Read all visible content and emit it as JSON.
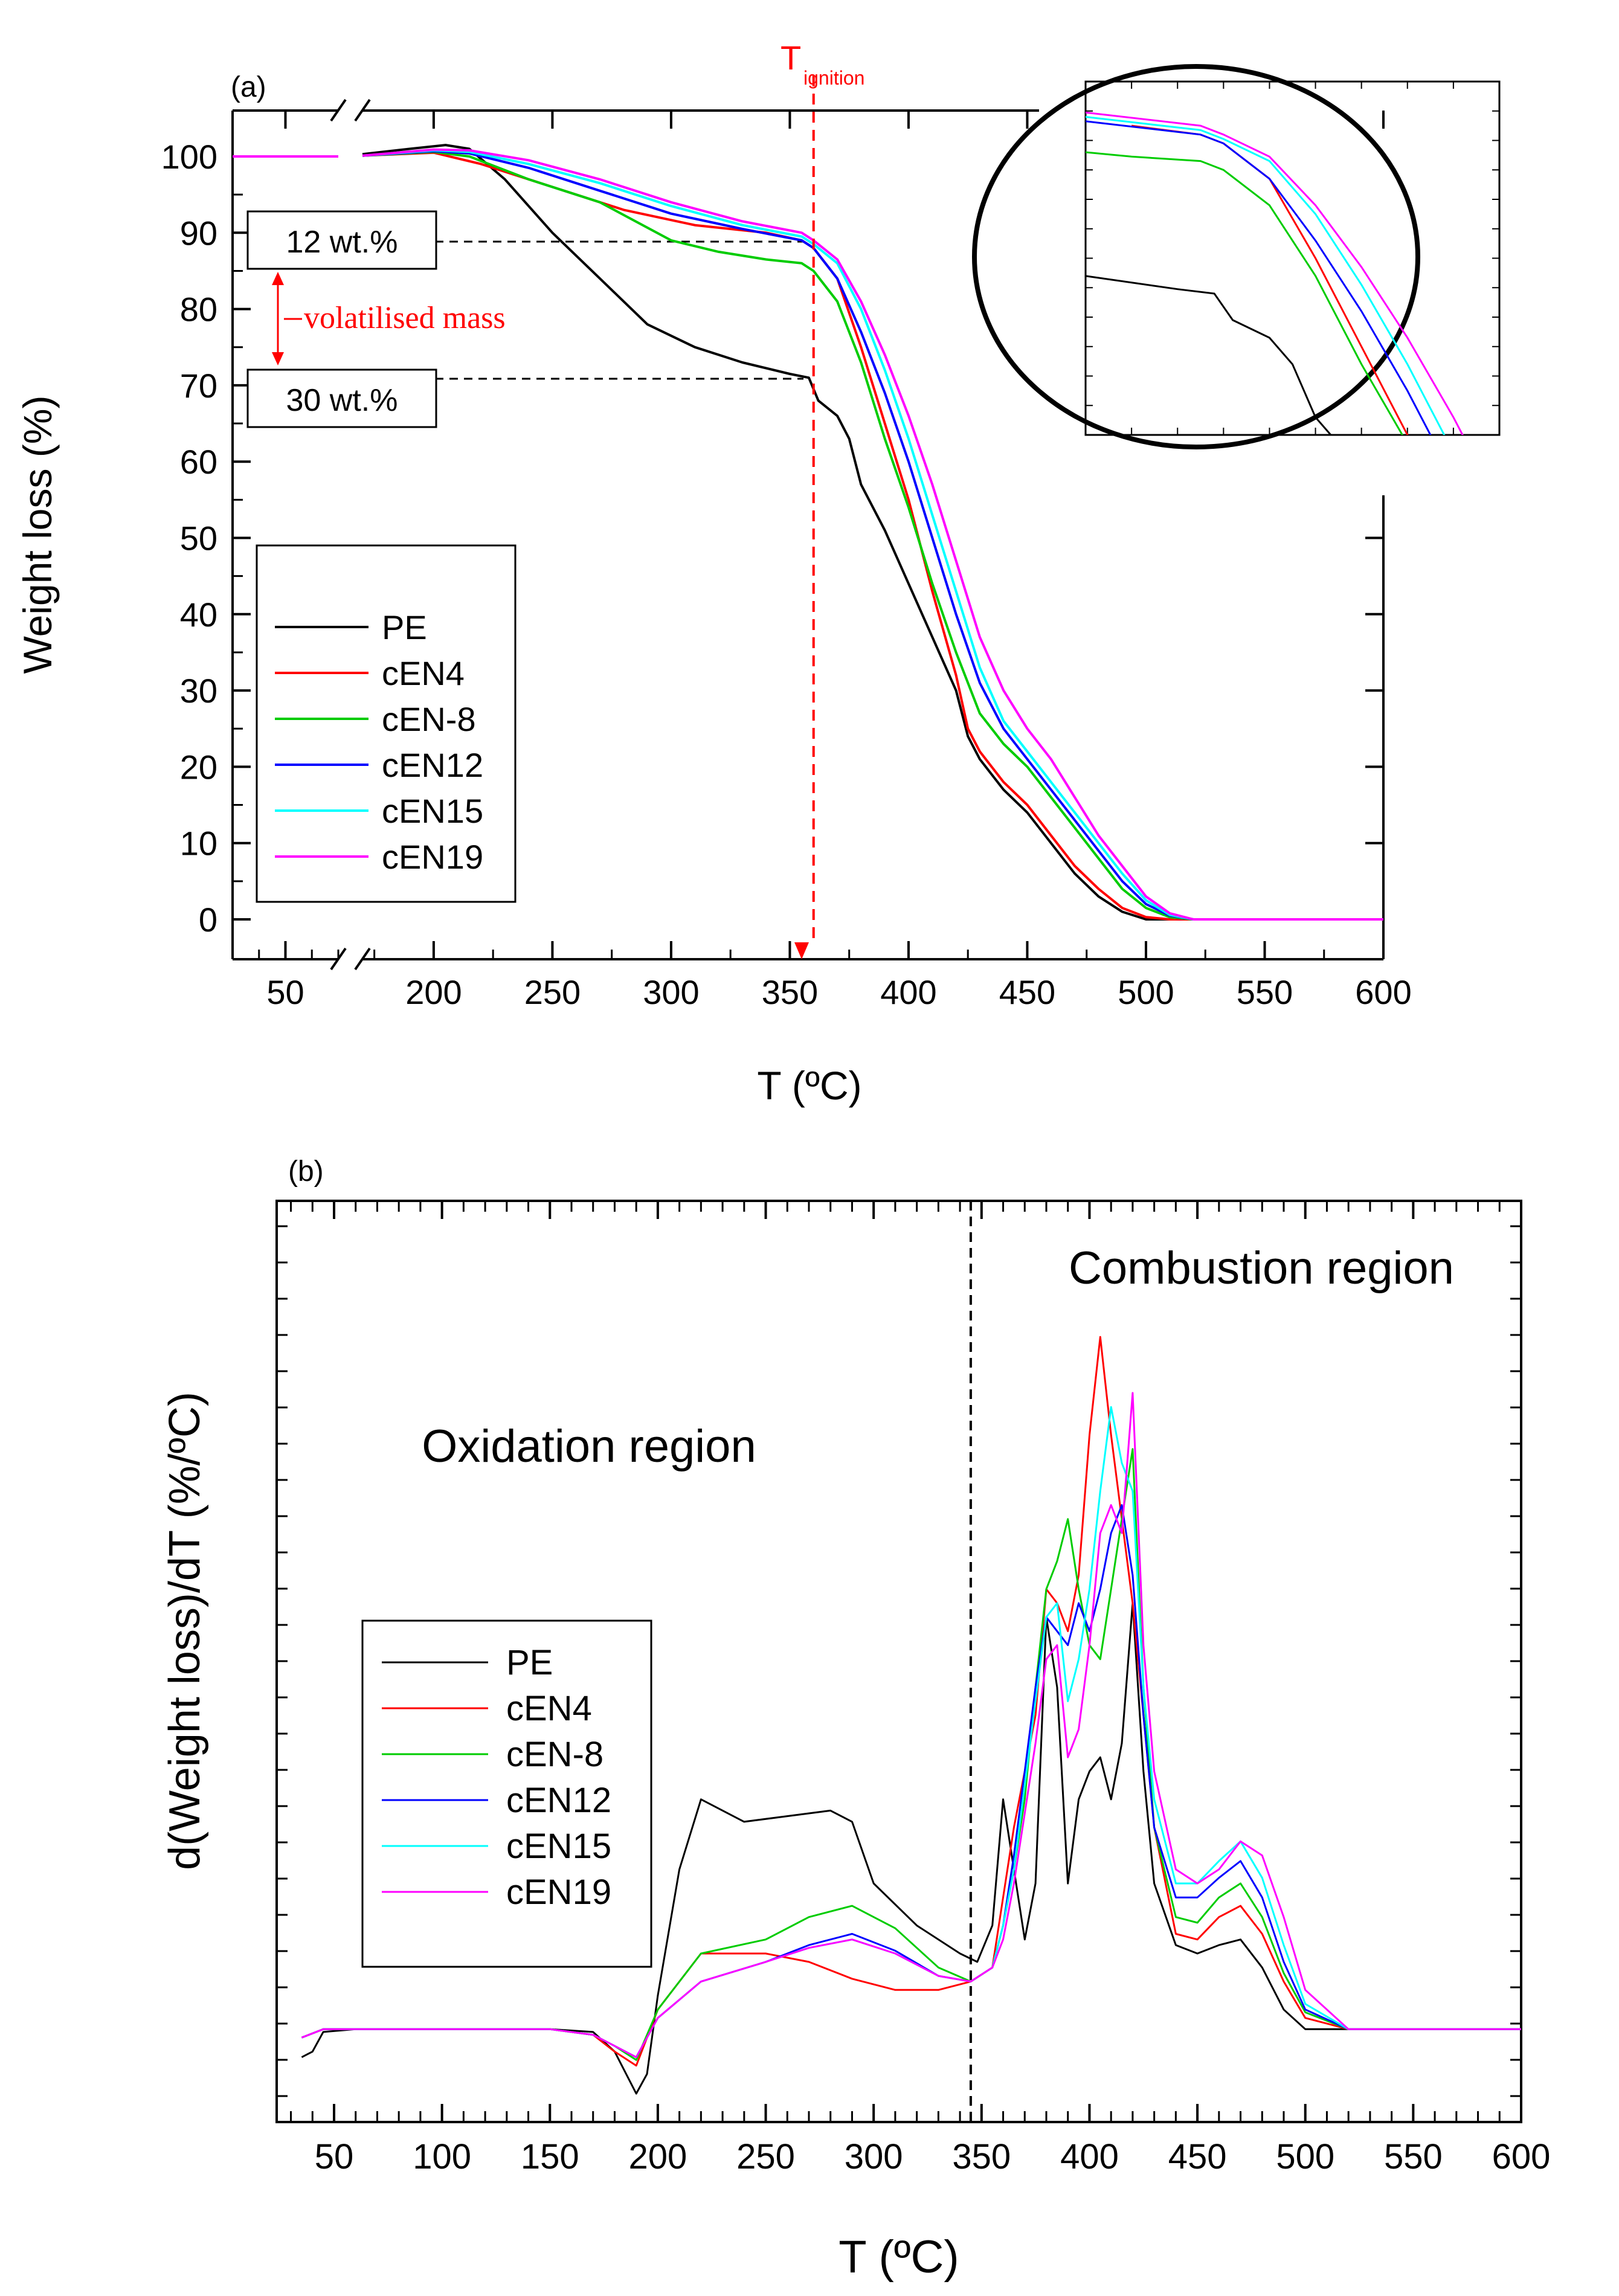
{
  "colors": {
    "PE": "#000000",
    "cEN4": "#ff0000",
    "cEN-8": "#00cc00",
    "cEN12": "#0000ff",
    "cEN15": "#00ffff",
    "cEN19": "#ff00ff",
    "annotation_red": "#ff0000"
  },
  "chart_data": [
    {
      "type": "line",
      "panel_label": "(a)",
      "xlabel": "T (ºC)",
      "ylabel": "Weight loss (%)",
      "xlim": [
        30,
        600
      ],
      "ylim": [
        -5,
        105
      ],
      "x_ticks": [
        "50",
        "200",
        "250",
        "300",
        "350",
        "400",
        "450",
        "500",
        "550",
        "600"
      ],
      "y_ticks": [
        "0",
        "10",
        "20",
        "30",
        "40",
        "50",
        "60",
        "70",
        "80",
        "90",
        "100"
      ],
      "axis_break": "between 70 and 170 ºC",
      "legend": [
        "PE",
        "cEN4",
        "cEN-8",
        "cEN12",
        "cEN15",
        "cEN19"
      ],
      "annotations": {
        "t_ignition_main": "T",
        "t_ignition_sub": "ignition",
        "t_ignition_x": 360,
        "box_12": "12 wt.%",
        "box_30": "30 wt.%",
        "volatilised": "volatilised mass",
        "inset": "magnified view near ignition"
      },
      "series": [
        {
          "name": "PE",
          "x": [
            30,
            70,
            170,
            190,
            205,
            215,
            230,
            250,
            270,
            290,
            310,
            330,
            350,
            358,
            362,
            370,
            375,
            380,
            390,
            400,
            410,
            420,
            425,
            430,
            440,
            450,
            460,
            470,
            480,
            490,
            500,
            520,
            600
          ],
          "y": [
            100,
            100,
            100.3,
            101,
            101.5,
            101,
            97,
            90,
            84,
            78,
            75,
            73,
            71.5,
            71,
            68,
            66,
            63,
            57,
            51,
            44,
            37,
            30,
            24,
            21,
            17,
            14,
            10,
            6,
            3,
            1,
            0,
            0,
            0
          ]
        },
        {
          "name": "cEN4",
          "x": [
            30,
            70,
            170,
            200,
            220,
            250,
            280,
            310,
            340,
            355,
            360,
            370,
            380,
            390,
            400,
            410,
            420,
            425,
            430,
            440,
            450,
            460,
            470,
            480,
            490,
            500,
            510,
            600
          ],
          "y": [
            100,
            100,
            100.1,
            100.5,
            99,
            96,
            93,
            91,
            90,
            89,
            88,
            84,
            75,
            65,
            55,
            43,
            32,
            25,
            22,
            18,
            15,
            11,
            7,
            4,
            1.5,
            0.3,
            0,
            0
          ]
        },
        {
          "name": "cEN-8",
          "x": [
            30,
            70,
            170,
            200,
            215,
            240,
            270,
            300,
            320,
            340,
            355,
            360,
            370,
            380,
            390,
            400,
            410,
            420,
            430,
            440,
            450,
            460,
            470,
            480,
            490,
            500,
            510,
            520,
            600
          ],
          "y": [
            100,
            100,
            100.1,
            100.6,
            100,
            97,
            94,
            89,
            87.5,
            86.5,
            86,
            85,
            81,
            73,
            63,
            54,
            44,
            35,
            27,
            23,
            20,
            16,
            12,
            8,
            4,
            1.5,
            0.3,
            0,
            0
          ]
        },
        {
          "name": "cEN12",
          "x": [
            30,
            70,
            170,
            200,
            215,
            240,
            270,
            300,
            330,
            355,
            360,
            370,
            380,
            390,
            400,
            410,
            420,
            430,
            440,
            450,
            460,
            470,
            480,
            490,
            500,
            510,
            520,
            600
          ],
          "y": [
            100,
            100,
            100.1,
            100.7,
            100.4,
            98.5,
            95.5,
            92.5,
            90.5,
            89,
            88,
            84,
            77,
            69,
            60,
            50,
            40,
            31,
            25,
            21,
            17,
            13,
            9,
            5,
            2,
            0.5,
            0,
            0
          ]
        },
        {
          "name": "cEN15",
          "x": [
            30,
            70,
            170,
            200,
            215,
            240,
            270,
            300,
            330,
            355,
            360,
            370,
            380,
            390,
            400,
            410,
            420,
            430,
            440,
            450,
            460,
            470,
            480,
            490,
            500,
            510,
            520,
            600
          ],
          "y": [
            100,
            100,
            100.1,
            100.8,
            100.6,
            99,
            96.5,
            93.5,
            91,
            89.5,
            88.5,
            86,
            80,
            72,
            63,
            53,
            43,
            33,
            26,
            22,
            18,
            14,
            10,
            6,
            2.5,
            0.6,
            0,
            0
          ]
        },
        {
          "name": "cEN19",
          "x": [
            30,
            70,
            170,
            200,
            215,
            240,
            270,
            300,
            330,
            355,
            360,
            370,
            380,
            390,
            400,
            410,
            420,
            430,
            440,
            450,
            460,
            470,
            480,
            490,
            500,
            510,
            520,
            600
          ],
          "y": [
            100,
            100,
            100.1,
            100.9,
            100.8,
            99.5,
            97,
            94,
            91.5,
            90,
            89,
            86.5,
            81,
            74,
            66,
            57,
            47,
            37,
            30,
            25,
            21,
            16,
            11,
            7,
            3,
            0.8,
            0,
            0
          ]
        }
      ]
    },
    {
      "type": "line",
      "panel_label": "(b)",
      "xlabel": "T (ºC)",
      "ylabel": "d(Weight loss)/dT (%/ºC)",
      "xlim": [
        25,
        600
      ],
      "ylim": [
        -0.7,
        2.85
      ],
      "x_ticks": [
        "50",
        "100",
        "150",
        "200",
        "250",
        "300",
        "350",
        "400",
        "450",
        "500",
        "550",
        "600"
      ],
      "y_ticks": [],
      "boundary_x": 345,
      "annotations": {
        "left_region": "Oxidation region",
        "right_region": "Combustion region"
      },
      "legend": [
        "PE",
        "cEN4",
        "cEN-8",
        "cEN12",
        "cEN15",
        "cEN19"
      ],
      "series": [
        {
          "name": "PE",
          "x": [
            35,
            40,
            45,
            60,
            80,
            100,
            120,
            150,
            170,
            180,
            190,
            195,
            200,
            210,
            220,
            225,
            240,
            260,
            280,
            290,
            300,
            320,
            340,
            348,
            355,
            360,
            365,
            370,
            375,
            380,
            385,
            390,
            395,
            400,
            405,
            410,
            415,
            420,
            425,
            430,
            440,
            450,
            460,
            470,
            480,
            490,
            500,
            520,
            600
          ],
          "y": [
            -0.12,
            -0.1,
            -0.03,
            -0.02,
            -0.02,
            -0.02,
            -0.02,
            -0.02,
            -0.03,
            -0.1,
            -0.25,
            -0.18,
            0.1,
            0.55,
            0.8,
            0.78,
            0.72,
            0.74,
            0.76,
            0.72,
            0.5,
            0.35,
            0.25,
            0.22,
            0.35,
            0.8,
            0.55,
            0.3,
            0.5,
            1.45,
            1.2,
            0.5,
            0.8,
            0.9,
            0.95,
            0.8,
            1.0,
            1.5,
            0.9,
            0.5,
            0.28,
            0.25,
            0.28,
            0.3,
            0.2,
            0.05,
            -0.02,
            -0.02,
            -0.02
          ]
        },
        {
          "name": "cEN4",
          "x": [
            35,
            45,
            80,
            150,
            170,
            180,
            190,
            200,
            220,
            250,
            270,
            290,
            310,
            330,
            345,
            355,
            360,
            365,
            370,
            375,
            380,
            385,
            390,
            395,
            400,
            405,
            410,
            415,
            420,
            425,
            430,
            440,
            450,
            460,
            470,
            480,
            490,
            500,
            520,
            600
          ],
          "y": [
            -0.05,
            -0.02,
            -0.02,
            -0.02,
            -0.04,
            -0.1,
            -0.15,
            0.05,
            0.25,
            0.25,
            0.22,
            0.16,
            0.12,
            0.12,
            0.15,
            0.2,
            0.45,
            0.7,
            0.9,
            1.1,
            1.55,
            1.5,
            1.4,
            1.6,
            2.1,
            2.45,
            2.1,
            1.8,
            1.5,
            1.1,
            0.7,
            0.32,
            0.3,
            0.38,
            0.42,
            0.32,
            0.15,
            0.02,
            -0.02,
            -0.02
          ]
        },
        {
          "name": "cEN-8",
          "x": [
            35,
            45,
            80,
            150,
            170,
            180,
            190,
            200,
            220,
            250,
            270,
            290,
            310,
            330,
            345,
            355,
            360,
            365,
            370,
            375,
            380,
            385,
            390,
            395,
            400,
            405,
            410,
            415,
            420,
            425,
            430,
            440,
            450,
            460,
            470,
            480,
            490,
            500,
            520,
            600
          ],
          "y": [
            -0.05,
            -0.02,
            -0.02,
            -0.02,
            -0.04,
            -0.08,
            -0.13,
            0.05,
            0.25,
            0.3,
            0.38,
            0.42,
            0.34,
            0.2,
            0.15,
            0.2,
            0.35,
            0.55,
            0.8,
            1.2,
            1.55,
            1.65,
            1.8,
            1.55,
            1.35,
            1.3,
            1.55,
            1.8,
            2.05,
            1.2,
            0.7,
            0.38,
            0.36,
            0.45,
            0.5,
            0.38,
            0.18,
            0.04,
            -0.02,
            -0.02
          ]
        },
        {
          "name": "cEN12",
          "x": [
            35,
            45,
            80,
            150,
            170,
            180,
            190,
            200,
            220,
            250,
            270,
            290,
            310,
            330,
            345,
            355,
            360,
            365,
            370,
            375,
            380,
            385,
            390,
            395,
            400,
            405,
            410,
            415,
            420,
            425,
            430,
            440,
            450,
            460,
            470,
            480,
            490,
            500,
            520,
            600
          ],
          "y": [
            -0.05,
            -0.02,
            -0.02,
            -0.02,
            -0.04,
            -0.08,
            -0.12,
            0.02,
            0.15,
            0.22,
            0.28,
            0.32,
            0.26,
            0.17,
            0.15,
            0.2,
            0.35,
            0.6,
            0.9,
            1.2,
            1.45,
            1.4,
            1.35,
            1.5,
            1.4,
            1.55,
            1.75,
            1.85,
            1.6,
            1.1,
            0.7,
            0.45,
            0.45,
            0.52,
            0.58,
            0.45,
            0.22,
            0.05,
            -0.02,
            -0.02
          ]
        },
        {
          "name": "cEN15",
          "x": [
            35,
            45,
            80,
            150,
            170,
            180,
            190,
            200,
            220,
            250,
            270,
            290,
            310,
            330,
            345,
            355,
            360,
            365,
            370,
            375,
            380,
            385,
            390,
            395,
            400,
            405,
            410,
            415,
            420,
            425,
            430,
            440,
            450,
            460,
            470,
            480,
            490,
            500,
            520,
            600
          ],
          "y": [
            -0.05,
            -0.02,
            -0.02,
            -0.02,
            -0.04,
            -0.08,
            -0.12,
            0.02,
            0.15,
            0.22,
            0.27,
            0.3,
            0.25,
            0.17,
            0.15,
            0.2,
            0.35,
            0.55,
            0.85,
            1.15,
            1.45,
            1.5,
            1.15,
            1.3,
            1.55,
            1.9,
            2.2,
            2.0,
            1.9,
            1.2,
            0.8,
            0.5,
            0.5,
            0.58,
            0.65,
            0.52,
            0.28,
            0.07,
            -0.02,
            -0.02
          ]
        },
        {
          "name": "cEN19",
          "x": [
            35,
            45,
            80,
            150,
            170,
            180,
            190,
            200,
            220,
            250,
            270,
            290,
            310,
            330,
            345,
            355,
            360,
            365,
            370,
            375,
            380,
            385,
            390,
            395,
            400,
            405,
            410,
            415,
            420,
            425,
            430,
            440,
            450,
            460,
            470,
            480,
            490,
            500,
            520,
            600
          ],
          "y": [
            -0.05,
            -0.02,
            -0.02,
            -0.02,
            -0.04,
            -0.08,
            -0.12,
            0.02,
            0.15,
            0.22,
            0.27,
            0.3,
            0.25,
            0.17,
            0.15,
            0.2,
            0.3,
            0.5,
            0.75,
            1.0,
            1.3,
            1.35,
            0.95,
            1.05,
            1.35,
            1.75,
            1.85,
            1.75,
            2.25,
            1.35,
            0.9,
            0.55,
            0.5,
            0.55,
            0.65,
            0.6,
            0.38,
            0.12,
            -0.02,
            -0.02
          ]
        }
      ]
    }
  ]
}
